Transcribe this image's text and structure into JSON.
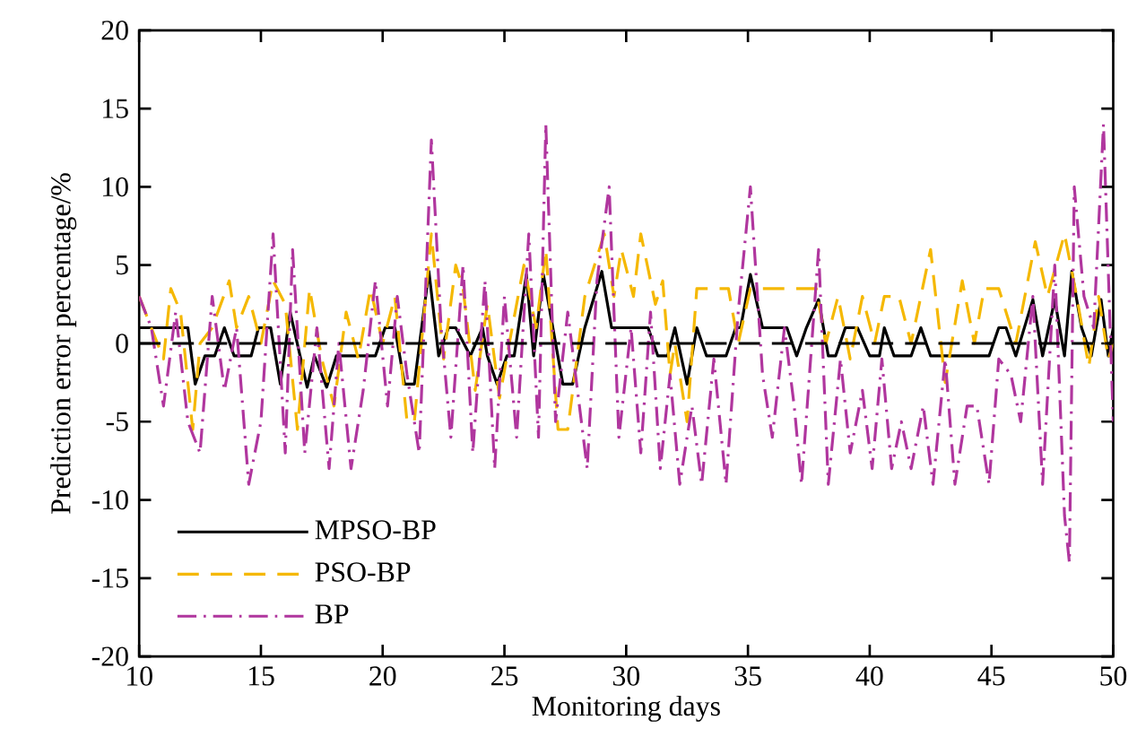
{
  "chart_data": {
    "type": "line",
    "xlabel": "Monitoring days",
    "ylabel": "Prediction error percentage/%",
    "xlim": [
      10,
      50
    ],
    "ylim": [
      -20,
      20
    ],
    "xticks": [
      10,
      15,
      20,
      25,
      30,
      35,
      40,
      45,
      50
    ],
    "yticks": [
      -20,
      -15,
      -10,
      -5,
      0,
      5,
      10,
      15,
      20
    ],
    "legend": "bottom left",
    "grid": false,
    "marker": "none",
    "ref_lines": [
      {
        "axis": "y",
        "value": 0,
        "color": "#000000",
        "line_style": "dashed"
      }
    ],
    "series": [
      {
        "name": "MPSO-BP",
        "color": "#000000",
        "line_style": "solid",
        "x": [
          10,
          12,
          12.3,
          12.7,
          13.1,
          13.5,
          13.9,
          14.6,
          14.9,
          15.4,
          15.8,
          16.2,
          16.9,
          17.2,
          17.7,
          18.1,
          19.7,
          20.1,
          20.5,
          20.9,
          21.3,
          21.9,
          22.3,
          22.7,
          23.0,
          23.6,
          24.1,
          24.3,
          24.7,
          25.1,
          25.4,
          25.9,
          26.2,
          26.6,
          27.4,
          27.8,
          28.3,
          29.0,
          29.4,
          30.9,
          31.3,
          31.7,
          32.0,
          32.5,
          32.9,
          33.3,
          34.1,
          34.5,
          34.7,
          35.1,
          35.6,
          36.6,
          37.0,
          37.4,
          37.9,
          38.3,
          38.6,
          39.0,
          39.5,
          40.0,
          40.4,
          40.6,
          41.0,
          41.7,
          42.1,
          42.5,
          44.9,
          45.3,
          45.6,
          46.0,
          46.7,
          47.1,
          47.6,
          48.0,
          48.3,
          48.7,
          49.1,
          49.5,
          49.8,
          50
        ],
        "values": [
          1.0,
          1.0,
          -2.6,
          -0.8,
          -0.8,
          1.0,
          -0.8,
          -0.8,
          1.0,
          1.0,
          -2.6,
          2.0,
          -2.8,
          -0.8,
          -2.8,
          -0.8,
          -0.8,
          1.0,
          1.0,
          -2.6,
          -2.6,
          4.6,
          -0.8,
          1.0,
          1.0,
          -0.8,
          1.0,
          -0.8,
          -2.6,
          -0.8,
          -0.8,
          4.4,
          -0.8,
          4.4,
          -2.6,
          -2.6,
          1.0,
          4.6,
          1.0,
          1.0,
          -0.8,
          -0.8,
          1.0,
          -2.6,
          1.0,
          -0.8,
          -0.8,
          1.0,
          1.0,
          4.4,
          1.0,
          1.0,
          -0.8,
          1.0,
          2.8,
          -0.8,
          -0.8,
          1.0,
          1.0,
          -0.8,
          -0.8,
          1.0,
          -0.8,
          -0.8,
          1.0,
          -0.8,
          -0.8,
          1.0,
          1.0,
          -0.8,
          2.8,
          -0.8,
          2.8,
          -0.8,
          4.6,
          1.0,
          -0.8,
          2.8,
          -0.8,
          1.0
        ]
      },
      {
        "name": "PSO-BP",
        "color": "#f5b800",
        "line_style": "dashed",
        "x": [
          10,
          11,
          11.3,
          11.7,
          12.2,
          12.5,
          13,
          13.7,
          14,
          14.5,
          15,
          15.5,
          16,
          16.5,
          17,
          17.5,
          18,
          18.5,
          19,
          19.5,
          20,
          20.5,
          21,
          21.3,
          22,
          22.5,
          23,
          23.3,
          23.8,
          24.3,
          24.8,
          25.2,
          25.8,
          26.3,
          26.7,
          27.2,
          27.6,
          28.3,
          29.1,
          29.5,
          29.8,
          30.3,
          30.6,
          31.2,
          31.5,
          31.8,
          32,
          32.5,
          32.9,
          34.2,
          34.6,
          35.1,
          37.8,
          38.2,
          38.7,
          39.2,
          39.7,
          40.2,
          40.6,
          41.2,
          41.7,
          42.5,
          43.1,
          43.8,
          44.3,
          44.7,
          45.3,
          46,
          46.8,
          47.3,
          48,
          48.5,
          49,
          49.4,
          49.8,
          50
        ],
        "values": [
          3,
          -1,
          3.5,
          2,
          -5.5,
          0,
          1,
          4,
          1,
          3,
          0,
          4,
          2.5,
          -5.5,
          3.5,
          -1,
          -4,
          2,
          -1,
          3.5,
          0,
          3,
          -5,
          -5,
          7,
          -1,
          5,
          3.5,
          -3,
          2.5,
          -3.5,
          0,
          5,
          1,
          6,
          -5.5,
          -5.5,
          3,
          7,
          3,
          6,
          3,
          7,
          2.5,
          4,
          -2,
          0,
          -5,
          3.5,
          3.5,
          0,
          3.5,
          3.5,
          0,
          3,
          -1,
          3,
          0,
          3,
          3,
          0,
          6,
          -2.5,
          4,
          0,
          3.5,
          3.5,
          0,
          6.5,
          3,
          7,
          3,
          -1.5,
          3,
          -1,
          0
        ]
      },
      {
        "name": "BP",
        "color": "#b0369e",
        "line_style": "dashdot",
        "x": [
          10,
          10.5,
          11,
          11.5,
          12,
          12.5,
          13,
          13.5,
          14,
          14.5,
          15,
          15.5,
          16,
          16.3,
          16.8,
          17.3,
          17.8,
          18.2,
          18.7,
          19.2,
          19.7,
          20.2,
          20.6,
          21,
          21.5,
          22,
          22.4,
          22.8,
          23.3,
          23.7,
          24.2,
          24.6,
          25,
          25.5,
          26,
          26.4,
          26.7,
          27.1,
          27.6,
          28,
          28.4,
          28.8,
          29.3,
          29.7,
          30.2,
          30.6,
          31,
          31.4,
          31.8,
          32.2,
          32.7,
          33.1,
          33.6,
          34.1,
          34.6,
          35.1,
          35.6,
          36,
          36.5,
          36.9,
          37.2,
          37.9,
          38.3,
          38.8,
          39.2,
          39.7,
          40.1,
          40.5,
          40.9,
          41.3,
          41.7,
          42.2,
          42.6,
          43.1,
          43.5,
          44,
          44.4,
          44.9,
          45.3,
          45.8,
          46.2,
          46.7,
          47.1,
          47.6,
          48,
          48.2,
          48.4,
          48.8,
          49.2,
          49.6,
          50
        ],
        "values": [
          3,
          1,
          -4,
          2,
          -5,
          -7,
          3,
          -3,
          1,
          -9,
          -5,
          7,
          -7,
          6,
          -7,
          1,
          -8,
          0,
          -8,
          -3,
          4,
          -4,
          3,
          -2,
          -7,
          13,
          1,
          -6,
          5,
          -7,
          4,
          -8,
          3,
          -6,
          7,
          -6,
          14,
          -5,
          2,
          -3,
          -8,
          4,
          10,
          -6,
          1,
          -7,
          2,
          -8,
          -2,
          -9,
          -4,
          -9,
          -1,
          -9,
          2,
          10,
          -2,
          -6,
          1,
          -4,
          -9,
          6,
          -9,
          -1,
          -7,
          -3,
          -8,
          -1,
          -8,
          -5,
          -8,
          -4,
          -9,
          -1,
          -9,
          -4,
          -4,
          -9,
          -1,
          -2,
          -5,
          3,
          -9,
          5,
          -11,
          -14,
          10,
          3,
          1,
          14,
          -5
        ]
      }
    ]
  }
}
